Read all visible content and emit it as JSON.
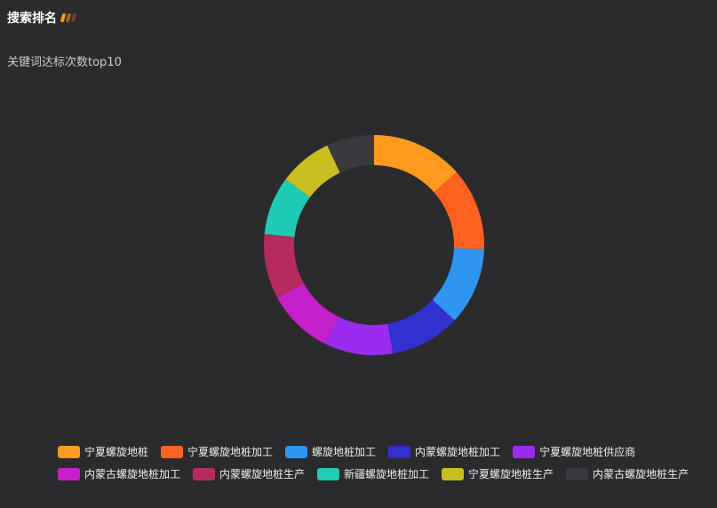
{
  "header": {
    "title": "搜索排名",
    "bar_colors": [
      "#ff9a1f",
      "#a8641e",
      "#6b4a2a"
    ]
  },
  "chart_data": {
    "type": "pie",
    "donut": true,
    "title": "关键词达标次数top10",
    "unit": "percent (estimated)",
    "categories": [
      "宁夏螺旋地桩",
      "宁夏螺旋地桩加工",
      "螺旋地桩加工",
      "内蒙螺旋地桩加工",
      "宁夏螺旋地桩供应商",
      "内蒙古螺旋地桩加工",
      "内蒙螺旋地桩生产",
      "新疆螺旋地桩加工",
      "宁夏螺旋地桩生产",
      "内蒙古螺旋地桩生产"
    ],
    "values": [
      13.5,
      12.1,
      11.4,
      10.3,
      10.1,
      9.7,
      9.6,
      8.6,
      7.8,
      7.0
    ],
    "colors": [
      "#ff9a1f",
      "#ff611f",
      "#2e95f0",
      "#3230d0",
      "#9b2bef",
      "#c61fcc",
      "#b62b5e",
      "#1fcbb7",
      "#c8be1f",
      "#3a393e"
    ],
    "legend_position": "bottom"
  }
}
